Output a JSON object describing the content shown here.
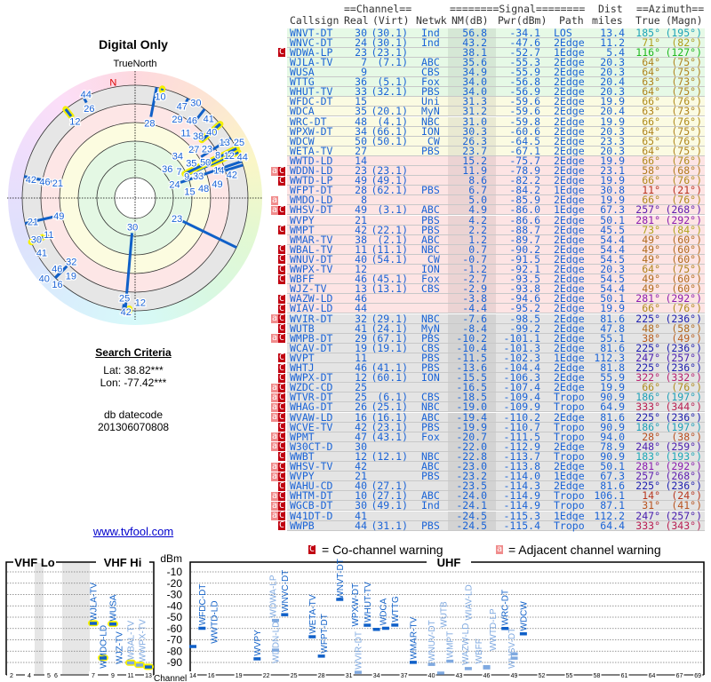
{
  "left": {
    "title": "Digital Only",
    "true_north": "TrueNorth",
    "north_label": "N",
    "search_title": "Search Criteria",
    "lat": "Lat: 38.82***",
    "lon": "Lon: -77.42***",
    "db_label": "db datecode",
    "db_value": "201306070808",
    "link": "www.tvfool.com"
  },
  "header": {
    "channel": "==Channel==",
    "signal": "========Signal========",
    "dist": "Dist",
    "azimuth": "==Azimuth==",
    "callsign": "Callsign",
    "real": "Real",
    "virt": "(Virt)",
    "netwk": "Netwk",
    "nm": "NM(dB)",
    "pwr": "Pwr(dBm)",
    "path": "Path",
    "miles": "miles",
    "true": "True",
    "magn": "(Magn)"
  },
  "columns": [
    "callsign",
    "real",
    "virt",
    "netwk",
    "nm_db",
    "pwr_dbm",
    "path",
    "dist_miles",
    "az_true",
    "az_magn",
    "warnings",
    "zone"
  ],
  "rows": [
    [
      "WNVT-DT",
      "30",
      "(30.1)",
      "Ind",
      "56.8",
      "-34.1",
      "LOS",
      "13.4",
      "185°",
      "(195°)",
      "",
      "g"
    ],
    [
      "WNVC-DT",
      "24",
      "(30.1)",
      "Ind",
      "43.2",
      "-47.6",
      "2Edge",
      "11.2",
      "71°",
      "(82°)",
      "",
      "g"
    ],
    [
      "WDWA-LP",
      "23",
      "(23.1)",
      "",
      "38.1",
      "-52.7",
      "1Edge",
      "5.4",
      "116°",
      "(127°)",
      "C",
      "g"
    ],
    [
      "WJLA-TV",
      "7",
      "(7.1)",
      "ABC",
      "35.6",
      "-55.3",
      "2Edge",
      "20.3",
      "64°",
      "(75°)",
      "",
      "g"
    ],
    [
      "WUSA",
      "9",
      "",
      "CBS",
      "34.9",
      "-55.9",
      "2Edge",
      "20.3",
      "64°",
      "(75°)",
      "",
      "g"
    ],
    [
      "WTTG",
      "36",
      "(5.1)",
      "Fox",
      "34.0",
      "-56.8",
      "2Edge",
      "20.4",
      "63°",
      "(73°)",
      "",
      "g"
    ],
    [
      "WHUT-TV",
      "33",
      "(32.1)",
      "PBS",
      "34.0",
      "-56.9",
      "2Edge",
      "20.3",
      "64°",
      "(75°)",
      "",
      "g"
    ],
    [
      "WFDC-DT",
      "15",
      "",
      "Uni",
      "31.3",
      "-59.6",
      "2Edge",
      "19.9",
      "66°",
      "(76°)",
      "",
      "y"
    ],
    [
      "WDCA",
      "35",
      "(20.1)",
      "MyN",
      "31.2",
      "-59.6",
      "2Edge",
      "20.4",
      "63°",
      "(73°)",
      "",
      "y"
    ],
    [
      "WRC-DT",
      "48",
      "(4.1)",
      "NBC",
      "31.0",
      "-59.8",
      "2Edge",
      "19.9",
      "66°",
      "(76°)",
      "",
      "y"
    ],
    [
      "WPXW-DT",
      "34",
      "(66.1)",
      "ION",
      "30.3",
      "-60.6",
      "2Edge",
      "20.3",
      "64°",
      "(75°)",
      "",
      "y"
    ],
    [
      "WDCW",
      "50",
      "(50.1)",
      " CW",
      "26.3",
      "-64.5",
      "2Edge",
      "23.3",
      "65°",
      "(76°)",
      "",
      "y"
    ],
    [
      "WETA-TV",
      "27",
      "",
      "PBS",
      "23.7",
      "-67.1",
      "2Edge",
      "20.3",
      "64°",
      "(75°)",
      "",
      "y"
    ],
    [
      "WWTD-LD",
      "14",
      "",
      "",
      "15.2",
      "-75.7",
      "2Edge",
      "19.9",
      "66°",
      "(76°)",
      "",
      "p"
    ],
    [
      "WDDN-LD",
      "23",
      "(23.1)",
      "",
      "11.9",
      "-78.9",
      "2Edge",
      "23.1",
      "58°",
      "(68°)",
      "aC",
      "p"
    ],
    [
      "WWTD-LP",
      "49",
      "(49.1)",
      "",
      "8.6",
      "-82.2",
      "2Edge",
      "19.9",
      "66°",
      "(76°)",
      "C",
      "p"
    ],
    [
      "WFPT-DT",
      "28",
      "(62.1)",
      "PBS",
      "6.7",
      "-84.2",
      "1Edge",
      "30.8",
      "11°",
      "(21°)",
      "",
      "p"
    ],
    [
      "WMDO-LD",
      "8",
      "",
      "",
      "5.0",
      "-85.9",
      "2Edge",
      "19.9",
      "66°",
      "(76°)",
      "a",
      "p"
    ],
    [
      "WHSV-DT",
      "49",
      "(3.1)",
      "ABC",
      "4.9",
      "-86.0",
      "1Edge",
      "67.3",
      "257°",
      "(268°)",
      "aC",
      "p"
    ],
    [
      "WVPY",
      "21",
      "",
      "PBS",
      "4.2",
      "-86.6",
      "2Edge",
      "50.1",
      "281°",
      "(292°)",
      "",
      "p"
    ],
    [
      "WMPT",
      "42",
      "(22.1)",
      "PBS",
      "2.2",
      "-88.7",
      "2Edge",
      "45.5",
      "73°",
      "(84°)",
      "C",
      "p"
    ],
    [
      "WMAR-TV",
      "38",
      "(2.1)",
      "ABC",
      "1.2",
      "-89.7",
      "2Edge",
      "54.4",
      "49°",
      "(60°)",
      "",
      "p"
    ],
    [
      "WBAL-TV",
      "11",
      "(11.1)",
      "NBC",
      "0.7",
      "-90.2",
      "2Edge",
      "54.4",
      "49°",
      "(60°)",
      "C",
      "p"
    ],
    [
      "WNUV-DT",
      "40",
      "(54.1)",
      " CW",
      "-0.7",
      "-91.5",
      "2Edge",
      "54.5",
      "49°",
      "(60°)",
      "C",
      "p"
    ],
    [
      "WWPX-TV",
      "12",
      "",
      "ION",
      "-1.2",
      "-92.1",
      "2Edge",
      "20.3",
      "64°",
      "(75°)",
      "C",
      "p"
    ],
    [
      "WBFF",
      "46",
      "(45.1)",
      "Fox",
      "-2.7",
      "-93.5",
      "2Edge",
      "54.5",
      "49°",
      "(60°)",
      "C",
      "p"
    ],
    [
      "WJZ-TV",
      "13",
      "(13.1)",
      "CBS",
      "-2.9",
      "-93.8",
      "2Edge",
      "54.4",
      "49°",
      "(60°)",
      "",
      "p"
    ],
    [
      "WAZW-LD",
      "46",
      "",
      "",
      "-3.8",
      "-94.6",
      "2Edge",
      "50.1",
      "281°",
      "(292°)",
      "C",
      "p"
    ],
    [
      "WIAV-LD",
      "44",
      "",
      "",
      "-4.4",
      "-95.2",
      "2Edge",
      "19.9",
      "66°",
      "(76°)",
      "C",
      "p"
    ],
    [
      "WVIR-DT",
      "32",
      "(29.1)",
      "NBC",
      "-7.6",
      "-98.5",
      "2Edge",
      "81.6",
      "225°",
      "(236°)",
      "aC",
      "x"
    ],
    [
      "WUTB",
      "41",
      "(24.1)",
      "MyN",
      "-8.4",
      "-99.2",
      "2Edge",
      "47.8",
      "48°",
      "(58°)",
      "C",
      "x"
    ],
    [
      "WMPB-DT",
      "29",
      "(67.1)",
      "PBS",
      "-10.2",
      "-101.1",
      "2Edge",
      "55.1",
      "38°",
      "(49°)",
      "aC",
      "x"
    ],
    [
      "WCAV-DT",
      "19",
      "(19.1)",
      "CBS",
      "-10.4",
      "-101.3",
      "2Edge",
      "81.6",
      "225°",
      "(236°)",
      "",
      "x"
    ],
    [
      "WVPT",
      "11",
      "",
      "PBS",
      "-11.5",
      "-102.3",
      "1Edge",
      "112.3",
      "247°",
      "(257°)",
      "C",
      "x"
    ],
    [
      "WHTJ",
      "46",
      "(41.1)",
      "PBS",
      "-13.6",
      "-104.4",
      "2Edge",
      "81.8",
      "225°",
      "(236°)",
      "C",
      "x"
    ],
    [
      "WWPX-DT",
      "12",
      "(60.1)",
      "ION",
      "-15.5",
      "-106.3",
      "2Edge",
      "55.9",
      "322°",
      "(332°)",
      "C",
      "x"
    ],
    [
      "WZDC-CD",
      "25",
      "",
      "",
      "-16.5",
      "-107.4",
      "2Edge",
      "19.9",
      "66°",
      "(76°)",
      "aC",
      "x"
    ],
    [
      "WTVR-DT",
      "25",
      "(6.1)",
      "CBS",
      "-18.5",
      "-109.4",
      "Tropo",
      "90.9",
      "186°",
      "(197°)",
      "aC",
      "x"
    ],
    [
      "WHAG-DT",
      "26",
      "(25.1)",
      "NBC",
      "-19.0",
      "-109.9",
      "Tropo",
      "64.9",
      "333°",
      "(344°)",
      "aC",
      "x"
    ],
    [
      "WVAW-LD",
      "16",
      "(16.1)",
      "ABC",
      "-19.4",
      "-110.2",
      "2Edge",
      "81.6",
      "225°",
      "(236°)",
      "aC",
      "x"
    ],
    [
      "WCVE-TV",
      "42",
      "(23.1)",
      "PBS",
      "-19.9",
      "-110.7",
      "Tropo",
      "90.9",
      "186°",
      "(197°)",
      "C",
      "x"
    ],
    [
      "WPMT",
      "47",
      "(43.1)",
      "Fox",
      "-20.7",
      "-111.5",
      "Tropo",
      "94.0",
      "28°",
      "(38°)",
      "aC",
      "x"
    ],
    [
      "W30CT-D",
      "30",
      "",
      "",
      "-22.0",
      "-112.9",
      "2Edge",
      "78.9",
      "248°",
      "(259°)",
      "aC",
      "x"
    ],
    [
      "WWBT",
      "12",
      "(12.1)",
      "NBC",
      "-22.8",
      "-113.7",
      "Tropo",
      "90.9",
      "183°",
      "(193°)",
      "C",
      "x"
    ],
    [
      "WHSV-TV",
      "42",
      "",
      "ABC",
      "-23.0",
      "-113.8",
      "2Edge",
      "50.1",
      "281°",
      "(292°)",
      "aC",
      "x"
    ],
    [
      "WVPY",
      "21",
      "",
      "PBS",
      "-23.2",
      "-114.0",
      "1Edge",
      "67.3",
      "257°",
      "(268°)",
      "aC",
      "x"
    ],
    [
      "WAHU-CD",
      "40",
      "(27.1)",
      "",
      "-23.5",
      "-114.3",
      "2Edge",
      "81.6",
      "225°",
      "(236°)",
      "C",
      "x"
    ],
    [
      "WHTM-DT",
      "10",
      "(27.1)",
      "ABC",
      "-24.0",
      "-114.9",
      "Tropo",
      "106.1",
      "14°",
      "(24°)",
      "aC",
      "x"
    ],
    [
      "WGCB-DT",
      "30",
      "(49.1)",
      "Ind",
      "-24.1",
      "-114.9",
      "Tropo",
      "87.1",
      "31°",
      "(41°)",
      "aC",
      "x"
    ],
    [
      "W41DT-D",
      "41",
      "",
      "",
      "-24.5",
      "-115.3",
      "1Edge",
      "112.2",
      "247°",
      "(257°)",
      "aC",
      "x"
    ],
    [
      "WWPB",
      "44",
      "(31.1)",
      "PBS",
      "-24.5",
      "-115.4",
      "Tropo",
      "64.4",
      "333°",
      "(343°)",
      "C",
      "x"
    ]
  ],
  "legend": {
    "co_badge": "C",
    "co_text": "= Co-channel warning",
    "adj_badge": "a",
    "adj_text": "= Adjacent channel warning"
  },
  "spectrum": {
    "vhf_lo": "VHF Lo",
    "vhf_hi": "VHF Hi",
    "uhf": "UHF",
    "dbm": "dBm",
    "channel": "Channel",
    "dbm_ticks": [
      "-10",
      "-20",
      "-30",
      "-40",
      "-50",
      "-60",
      "-70",
      "-80",
      "-90"
    ],
    "vhf_ticks": [
      "2",
      "4",
      "5",
      "6",
      "7",
      "9",
      "11",
      "13"
    ],
    "uhf_ticks": [
      "14",
      "16",
      "19",
      "22",
      "25",
      "28",
      "31",
      "34",
      "37",
      "40",
      "43",
      "46",
      "49",
      "52",
      "55",
      "58",
      "61",
      "64",
      "67",
      "69"
    ]
  },
  "colors": {
    "strong": "#1060c8",
    "cochannel": "#7fa9e0",
    "vhf_highlight": "#f4f000",
    "text_blue": "#1a63d6"
  }
}
